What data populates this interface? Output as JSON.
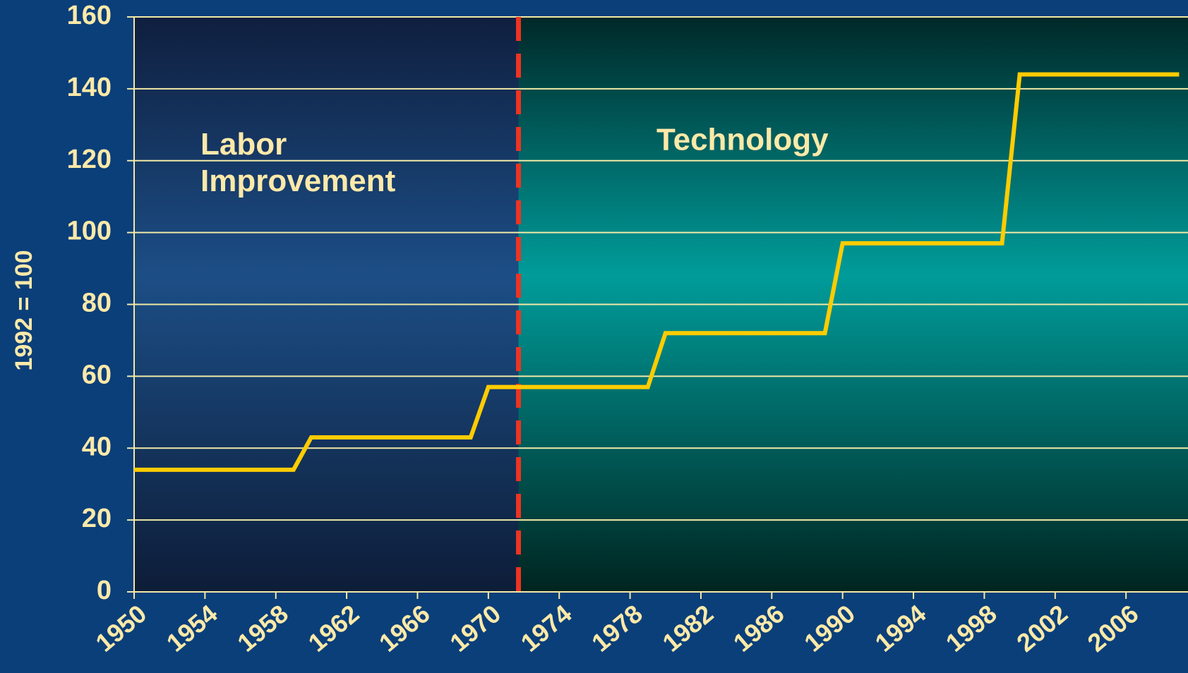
{
  "chart_data": {
    "type": "line",
    "ylabel": "1992 = 100",
    "x": [
      1950,
      1959,
      1960,
      1969,
      1970,
      1979,
      1980,
      1989,
      1990,
      1999,
      2000,
      2009
    ],
    "series": [
      {
        "color": "#ffcc00",
        "values": [
          34,
          34,
          43,
          43,
          57,
          57,
          72,
          72,
          97,
          97,
          144,
          144
        ]
      }
    ],
    "xlim": [
      1950,
      2009.5
    ],
    "xticks": [
      1950,
      1954,
      1958,
      1962,
      1966,
      1970,
      1974,
      1978,
      1982,
      1986,
      1990,
      1994,
      1998,
      2002,
      2006
    ],
    "ylim": [
      0,
      160
    ],
    "yticks": [
      0,
      20,
      40,
      60,
      80,
      100,
      120,
      140,
      160
    ],
    "grid": true,
    "divider_x": 1971.7,
    "divider_color": "#ee3322",
    "left_region_label": [
      "Labor",
      "Improvement"
    ],
    "right_region_label": "Technology"
  }
}
